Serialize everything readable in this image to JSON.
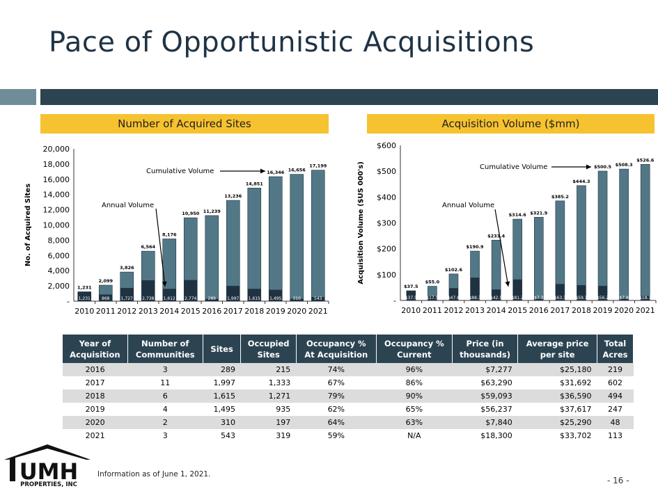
{
  "page": {
    "title": "Pace of Opportunistic Acquisitions",
    "footnote": "Information as of June 1, 2021.",
    "page_number": "- 16 -",
    "logo": {
      "name": "UMH",
      "subtitle": "PROPERTIES, INC"
    }
  },
  "colors": {
    "bar_light": "#527887",
    "bar_dark": "#1f3242",
    "header_band": "#f6c230",
    "table_header": "#2c4452"
  },
  "chart_data": [
    {
      "type": "bar",
      "title": "Number of Acquired Sites",
      "ylabel": "No. of Acquired Sites",
      "xlabel": "",
      "categories": [
        "2010",
        "2011",
        "2012",
        "2013",
        "2014",
        "2015",
        "2016",
        "2017",
        "2018",
        "2019",
        "2020",
        "2021"
      ],
      "ylim": [
        0,
        20000
      ],
      "yticks": [
        "-",
        "2,000",
        "4,000",
        "6,000",
        "8,000",
        "10,000",
        "12,000",
        "14,000",
        "16,000",
        "18,000",
        "20,000"
      ],
      "series": [
        {
          "name": "Cumulative Volume",
          "values": [
            1231,
            2099,
            3826,
            6564,
            8176,
            10950,
            11239,
            13236,
            14851,
            16346,
            16656,
            17199
          ],
          "labels": [
            "1,231",
            "2,099",
            "3,826",
            "6,564",
            "8,176",
            "10,950",
            "11,239",
            "13,236",
            "14,851",
            "16,346",
            "16,656",
            "17,199"
          ]
        },
        {
          "name": "Annual Volume",
          "values": [
            1231,
            868,
            1727,
            2738,
            1612,
            2774,
            289,
            1997,
            1615,
            1495,
            310,
            543
          ],
          "labels": [
            "1,231",
            "868",
            "1,727",
            "2,738",
            "1,612",
            "2,774",
            "289",
            "1,997",
            "1,615",
            "1,495",
            "310",
            "543"
          ]
        }
      ],
      "annotations": [
        "Cumulative Volume",
        "Annual Volume"
      ],
      "grid": false
    },
    {
      "type": "bar",
      "title": "Acquisition Volume ($mm)",
      "ylabel": "Acquisition Volume ($US 000's)",
      "xlabel": "",
      "categories": [
        "2010",
        "2011",
        "2012",
        "2013",
        "2014",
        "2015",
        "2016",
        "2017",
        "2018",
        "2019",
        "2020",
        "2021"
      ],
      "ylim": [
        0,
        600
      ],
      "yticks": [
        "-",
        "$100",
        "$200",
        "$300",
        "$400",
        "$500",
        "$600"
      ],
      "series": [
        {
          "name": "Cumulative Volume",
          "values": [
            37.5,
            55.0,
            102.6,
            190.9,
            233.4,
            314.6,
            321.9,
            385.2,
            444.3,
            500.5,
            508.3,
            526.6
          ],
          "labels": [
            "$37.5",
            "$55.0",
            "$102.6",
            "$190.9",
            "$233.4",
            "$314.6",
            "$321.9",
            "$385.2",
            "$444.3",
            "$500.5",
            "$508.3",
            "$526.6"
          ]
        },
        {
          "name": "Annual Volume",
          "values": [
            37.5,
            17.5,
            47.6,
            88.3,
            42.5,
            81.2,
            7.3,
            63.3,
            59.1,
            56.2,
            7.8,
            18.3
          ],
          "labels": [
            "$37.5",
            "$17.5",
            "$47.6",
            "$88.3",
            "$42.5",
            "$81.2",
            "$7.3",
            "$63.3",
            "$59.1",
            "$56.2",
            "$7.8",
            "$18.3"
          ]
        }
      ],
      "annotations": [
        "Cumulative Volume",
        "Annual Volume"
      ],
      "grid": false
    }
  ],
  "table": {
    "headers": [
      [
        "Year of",
        "Acquisition"
      ],
      [
        "Number of",
        "Communities"
      ],
      [
        "Sites",
        ""
      ],
      [
        "Occupied",
        "Sites"
      ],
      [
        "Occupancy %",
        "At Acquisition"
      ],
      [
        "Occupancy %",
        "Current"
      ],
      [
        "Price (in",
        "thousands)"
      ],
      [
        "Average price",
        "per site"
      ],
      [
        "Total",
        "Acres"
      ]
    ],
    "rows": [
      [
        "2016",
        "3",
        "289",
        "215",
        "74%",
        "96%",
        "$7,277",
        "$25,180",
        "219"
      ],
      [
        "2017",
        "11",
        "1,997",
        "1,333",
        "67%",
        "86%",
        "$63,290",
        "$31,692",
        "602"
      ],
      [
        "2018",
        "6",
        "1,615",
        "1,271",
        "79%",
        "90%",
        "$59,093",
        "$36,590",
        "494"
      ],
      [
        "2019",
        "4",
        "1,495",
        "935",
        "62%",
        "65%",
        "$56,237",
        "$37,617",
        "247"
      ],
      [
        "2020",
        "2",
        "310",
        "197",
        "64%",
        "63%",
        "$7,840",
        "$25,290",
        "48"
      ],
      [
        "2021",
        "3",
        "543",
        "319",
        "59%",
        "N/A",
        "$18,300",
        "$33,702",
        "113"
      ]
    ]
  }
}
